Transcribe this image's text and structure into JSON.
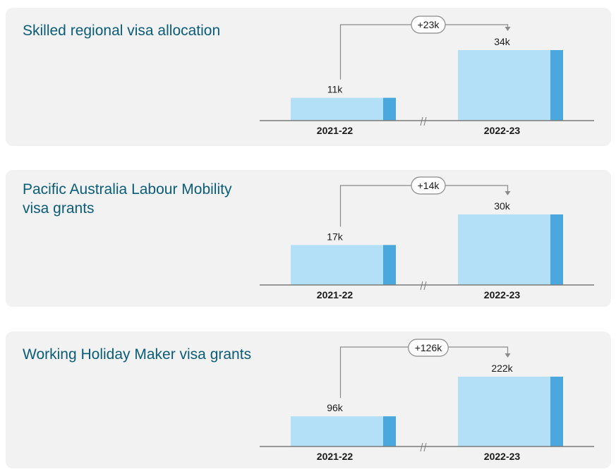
{
  "colors": {
    "bar_face": "#b3e0f7",
    "bar_edge": "#4aa8de",
    "axis": "#7a7a7a",
    "connector": "#8a8a8a",
    "title": "#0b5c78",
    "text": "#1a1a1a"
  },
  "chart_data": [
    {
      "type": "bar",
      "title": "Skilled regional visa allocation",
      "categories": [
        "2021-22",
        "2022-23"
      ],
      "values": [
        11,
        34
      ],
      "value_labels": [
        "11k",
        "34k"
      ],
      "change_label": "+23k",
      "axis_break": true
    },
    {
      "type": "bar",
      "title": "Pacific Australia Labour Mobility visa grants",
      "categories": [
        "2021-22",
        "2022-23"
      ],
      "values": [
        17,
        30
      ],
      "value_labels": [
        "17k",
        "30k"
      ],
      "change_label": "+14k",
      "axis_break": true
    },
    {
      "type": "bar",
      "title": "Working Holiday Maker visa grants",
      "categories": [
        "2021-22",
        "2022-23"
      ],
      "values": [
        96,
        222
      ],
      "value_labels": [
        "96k",
        "222k"
      ],
      "change_label": "+126k",
      "axis_break": true
    }
  ]
}
